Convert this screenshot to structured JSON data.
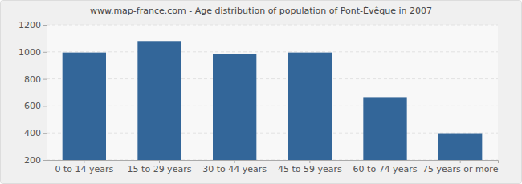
{
  "chart_data": {
    "type": "bar",
    "title": "www.map-france.com - Age distribution of population of Pont-Évêque in 2007",
    "categories": [
      "0 to 14 years",
      "15 to 29 years",
      "30 to 44 years",
      "45 to 59 years",
      "60 to 74 years",
      "75 years or more"
    ],
    "values": [
      995,
      1080,
      985,
      995,
      665,
      398
    ],
    "color": "#336699",
    "ylim": [
      200,
      1200
    ],
    "yticks": [
      200,
      400,
      600,
      800,
      1000,
      1200
    ],
    "grid": true
  }
}
